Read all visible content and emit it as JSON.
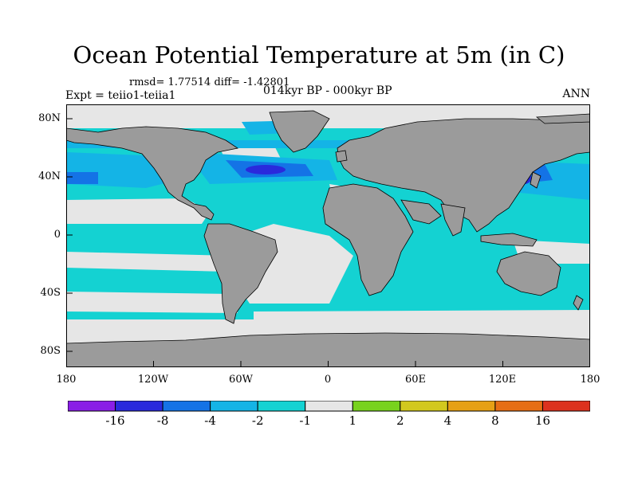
{
  "title": "Ocean Potential Temperature at 5m (in C)",
  "stats": "rmsd= 1.77514 diff= -1.42801",
  "experiment": "Expt = teiio1-teiia1",
  "period": "014kyr BP - 000kyr BP",
  "season": "ANN",
  "lat_labels": [
    "80N",
    "40N",
    "0",
    "40S",
    "80S"
  ],
  "lon_labels": [
    "180",
    "120W",
    "60W",
    "0",
    "60E",
    "120E",
    "180"
  ],
  "colorbar": {
    "colors": [
      "#8a1ee6",
      "#2a2adc",
      "#1473e6",
      "#14b4e6",
      "#14d2d2",
      "#e6e6e6",
      "#78d21e",
      "#d2c81e",
      "#e6a014",
      "#e66e14",
      "#dc321e"
    ],
    "labels": [
      "-16",
      "-8",
      "-4",
      "-2",
      "-1",
      "1",
      "2",
      "4",
      "8",
      "16"
    ]
  },
  "colors": {
    "land": "#9b9b9b",
    "ocean_neutral": "#e6e6e6",
    "cool_light": "#14d2d2",
    "cool_mid": "#14b4e6",
    "cool_strong": "#1473e6",
    "cool_extreme": "#2a2adc",
    "warm": "#78d21e"
  }
}
